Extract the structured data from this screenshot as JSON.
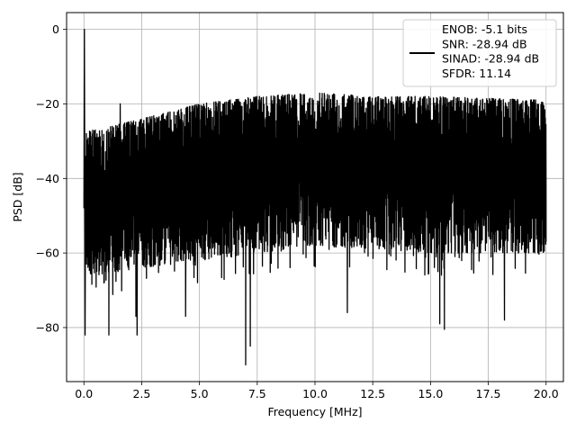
{
  "chart_data": {
    "type": "line",
    "title": "",
    "xlabel": "Frequency [MHz]",
    "ylabel": "PSD [dB]",
    "xlim": [
      -0.75,
      20.75
    ],
    "ylim": [
      -94.5,
      4.5
    ],
    "xticks": [
      0.0,
      2.5,
      5.0,
      7.5,
      10.0,
      12.5,
      15.0,
      17.5,
      20.0
    ],
    "xtick_labels": [
      "0.0",
      "2.5",
      "5.0",
      "7.5",
      "10.0",
      "12.5",
      "15.0",
      "17.5",
      "20.0"
    ],
    "yticks": [
      0,
      -20,
      -40,
      -60,
      -80
    ],
    "ytick_labels": [
      "0",
      "−20",
      "−40",
      "−60",
      "−80"
    ],
    "grid": true,
    "legend_position": "top-right",
    "legend": [
      "ENOB: -5.1 bits",
      "SNR: -28.94 dB",
      "SINAD: -28.94 dB",
      "SFDR: 11.14"
    ],
    "series": [
      {
        "color": "#000000",
        "x_range": [
          0.0,
          20.0
        ],
        "peak": {
          "x": 0.02,
          "y": 0.0
        },
        "upper_envelope": {
          "x": [
            0.0,
            0.5,
            2.5,
            5.0,
            7.5,
            10.0,
            12.5,
            15.0,
            17.5,
            20.0
          ],
          "y": [
            -27,
            -27,
            -24,
            -20,
            -18,
            -17,
            -18,
            -18,
            -18.5,
            -19
          ]
        },
        "lower_envelope": {
          "x": [
            0.0,
            0.5,
            2.5,
            5.0,
            7.5,
            10.0,
            12.5,
            15.0,
            17.5,
            20.0
          ],
          "y": [
            -65,
            -66,
            -64,
            -62,
            -60,
            -58,
            -59,
            -60,
            -60,
            -60
          ]
        },
        "spurs": [
          {
            "x": 0.05,
            "y": -82
          },
          {
            "x": 1.08,
            "y": -82
          },
          {
            "x": 1.57,
            "y": -20
          },
          {
            "x": 2.25,
            "y": -77
          },
          {
            "x": 2.3,
            "y": -82
          },
          {
            "x": 4.4,
            "y": -77
          },
          {
            "x": 7.0,
            "y": -90
          },
          {
            "x": 7.2,
            "y": -85
          },
          {
            "x": 11.4,
            "y": -76
          },
          {
            "x": 15.4,
            "y": -79
          },
          {
            "x": 15.6,
            "y": -80.5
          },
          {
            "x": 18.2,
            "y": -78
          }
        ]
      }
    ]
  }
}
